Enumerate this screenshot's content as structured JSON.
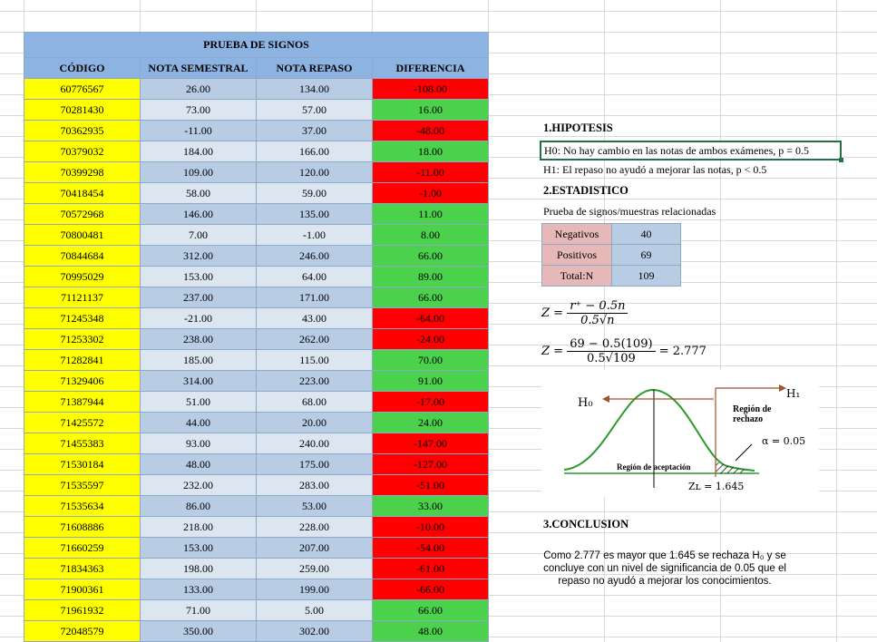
{
  "table": {
    "title": "PRUEBA DE SIGNOS",
    "headers": [
      "CÓDIGO",
      "NOTA SEMESTRAL",
      "NOTA REPASO",
      "DIFERENCIA"
    ],
    "rows": [
      [
        "60776567",
        "26.00",
        "134.00",
        "-108.00"
      ],
      [
        "70281430",
        "73.00",
        "57.00",
        "16.00"
      ],
      [
        "70362935",
        "-11.00",
        "37.00",
        "-48.00"
      ],
      [
        "70379032",
        "184.00",
        "166.00",
        "18.00"
      ],
      [
        "70399298",
        "109.00",
        "120.00",
        "-11.00"
      ],
      [
        "70418454",
        "58.00",
        "59.00",
        "-1.00"
      ],
      [
        "70572968",
        "146.00",
        "135.00",
        "11.00"
      ],
      [
        "70800481",
        "7.00",
        "-1.00",
        "8.00"
      ],
      [
        "70844684",
        "312.00",
        "246.00",
        "66.00"
      ],
      [
        "70995029",
        "153.00",
        "64.00",
        "89.00"
      ],
      [
        "71121137",
        "237.00",
        "171.00",
        "66.00"
      ],
      [
        "71245348",
        "-21.00",
        "43.00",
        "-64.00"
      ],
      [
        "71253302",
        "238.00",
        "262.00",
        "-24.00"
      ],
      [
        "71282841",
        "185.00",
        "115.00",
        "70.00"
      ],
      [
        "71329406",
        "314.00",
        "223.00",
        "91.00"
      ],
      [
        "71387944",
        "51.00",
        "68.00",
        "-17.00"
      ],
      [
        "71425572",
        "44.00",
        "20.00",
        "24.00"
      ],
      [
        "71455383",
        "93.00",
        "240.00",
        "-147.00"
      ],
      [
        "71530184",
        "48.00",
        "175.00",
        "-127.00"
      ],
      [
        "71535597",
        "232.00",
        "283.00",
        "-51.00"
      ],
      [
        "71535634",
        "86.00",
        "53.00",
        "33.00"
      ],
      [
        "71608886",
        "218.00",
        "228.00",
        "-10.00"
      ],
      [
        "71660259",
        "153.00",
        "207.00",
        "-54.00"
      ],
      [
        "71834363",
        "198.00",
        "259.00",
        "-61.00"
      ],
      [
        "71900361",
        "133.00",
        "199.00",
        "-66.00"
      ],
      [
        "71961932",
        "71.00",
        "5.00",
        "66.00"
      ],
      [
        "72048579",
        "350.00",
        "302.00",
        "48.00"
      ]
    ]
  },
  "analysis": {
    "hypothesis_title": "1.HIPOTESIS",
    "h0": "H0: No hay cambio en las notas de ambos exámenes, p = 0.5",
    "h1": "H1: El repaso no ayudó a mejorar las notas, p < 0.5",
    "statistic_title": "2.ESTADISTICO",
    "test_name": "Prueba de signos/muestras relacionadas",
    "counts": [
      {
        "label": "Negativos",
        "value": "40"
      },
      {
        "label": "Positivos",
        "value": "69"
      },
      {
        "label": "Total:N",
        "value": "109"
      }
    ],
    "formula1": {
      "lhs": "Z =",
      "num": "r⁺ − 0.5n",
      "den": "0.5√n"
    },
    "formula2": {
      "lhs": "Z =",
      "num": "69 − 0.5(109)",
      "den": "0.5√109",
      "result": "= 2.777"
    },
    "diagram": {
      "h0_label": "H₀",
      "h1_label": "H₁",
      "reject_label_1": "Región de",
      "reject_label_2": "rechazo",
      "alpha_label": "α = 0.05",
      "accept_label": "Región de aceptación",
      "zl_label": "Zʟ = 1.645"
    },
    "conclusion_title": "3.CONCLUSION",
    "conclusion_text": "Como 2.777 es mayor que 1.645 se rechaza H₀ y se concluye con un nivel de significancia de 0.05 que el repaso no ayudó a mejorar los conocimientos."
  },
  "colors": {
    "header_blue": "#8db3e2",
    "code_yellow": "#ffff00",
    "positive_green": "#4cd14c",
    "negative_red": "#ff0000",
    "curve_green": "#2d9a2d",
    "arrow_brown": "#a0522d",
    "selection_border": "#217346"
  }
}
